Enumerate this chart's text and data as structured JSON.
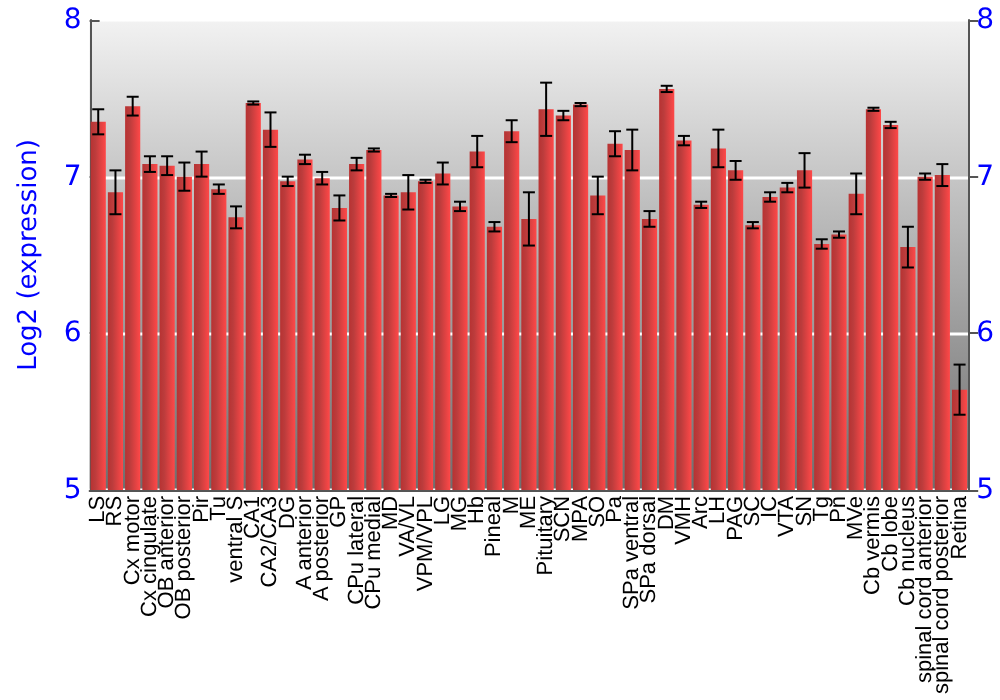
{
  "chart_data": {
    "type": "bar",
    "ylabel": "Log2 (expression)",
    "categories": [
      "LS",
      "RS",
      "Cx motor",
      "Cx cingulate",
      "OB anterior",
      "OB posterior",
      "Pir",
      "Tu",
      "ventral S",
      "CA1",
      "CA2/CA3",
      "DG",
      "A anterior",
      "A posterior",
      "GP",
      "CPu lateral",
      "CPu medial",
      "MD",
      "VA/VL",
      "VPM/VPL",
      "LG",
      "MG",
      "Hb",
      "Pineal",
      "M",
      "ME",
      "Pituitary",
      "SCN",
      "MPA",
      "SO",
      "Pa",
      "SPa ventral",
      "SPa dorsal",
      "DM",
      "VMH",
      "Arc",
      "LH",
      "PAG",
      "SC",
      "IC",
      "VTA",
      "SN",
      "Tg",
      "Pn",
      "MVe",
      "Cb vermis",
      "Cb lobe",
      "Cb nucleus",
      "spinal cord anterior",
      "spinal cord posterior",
      "Retina"
    ],
    "series": [
      {
        "color": "#b83232",
        "values": [
          7.35,
          6.9,
          7.45,
          7.08,
          7.07,
          7.0,
          7.08,
          6.92,
          6.74,
          7.47,
          7.3,
          6.97,
          7.11,
          6.99,
          6.8,
          7.08,
          7.17,
          6.88,
          6.9,
          6.97,
          7.02,
          6.81,
          7.16,
          6.68,
          7.29,
          6.73,
          7.43,
          7.39,
          7.46,
          6.88,
          7.21,
          7.17,
          6.73,
          7.56,
          7.23,
          6.82,
          7.18,
          7.04,
          6.69,
          6.87,
          6.93,
          7.04,
          6.57,
          6.63,
          6.89,
          7.43,
          7.33,
          6.55,
          7.0,
          7.01,
          5.64
        ],
        "errors": [
          0.08,
          0.14,
          0.06,
          0.05,
          0.06,
          0.09,
          0.08,
          0.03,
          0.07,
          0.01,
          0.11,
          0.03,
          0.03,
          0.04,
          0.08,
          0.04,
          0.01,
          0.01,
          0.11,
          0.01,
          0.07,
          0.03,
          0.1,
          0.03,
          0.07,
          0.17,
          0.17,
          0.03,
          0.01,
          0.12,
          0.08,
          0.13,
          0.05,
          0.02,
          0.03,
          0.02,
          0.12,
          0.06,
          0.02,
          0.03,
          0.03,
          0.11,
          0.03,
          0.02,
          0.13,
          0.01,
          0.02,
          0.13,
          0.02,
          0.07,
          0.16
        ]
      }
    ],
    "ylim": [
      5,
      8
    ],
    "yticks": [
      5,
      6,
      7,
      8
    ],
    "y2lim": [
      5,
      8
    ],
    "y2ticks": [
      5,
      6,
      7,
      8
    ],
    "grid": "y"
  }
}
